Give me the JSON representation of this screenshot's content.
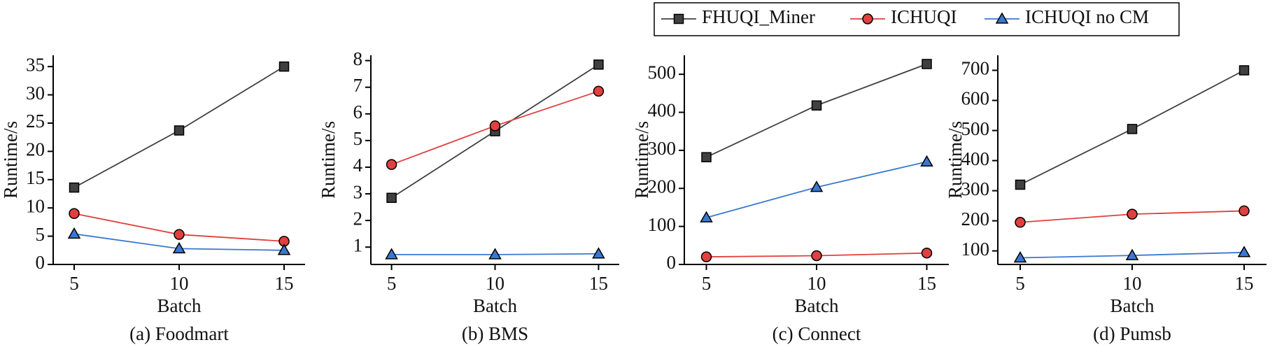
{
  "chart_data": [
    {
      "type": "line",
      "title": "(a) Foodmart",
      "x_label": "Batch",
      "y_label": "Runtime/s",
      "x": [
        5,
        10,
        15
      ],
      "xlim": [
        4,
        16
      ],
      "xticks": [
        5,
        10,
        15
      ],
      "ylim": [
        0,
        37
      ],
      "yticks": [
        0,
        5,
        10,
        15,
        20,
        25,
        30,
        35
      ],
      "series": [
        {
          "name": "FHUQI_Miner",
          "color": "#404040",
          "marker": "square",
          "values": [
            13.6,
            23.7,
            35
          ]
        },
        {
          "name": "ICHUQI",
          "color": "#e0403f",
          "marker": "circle",
          "values": [
            9,
            5.3,
            4.1
          ]
        },
        {
          "name": "ICHUQI no CM",
          "color": "#3a78d0",
          "marker": "triangle",
          "values": [
            5.4,
            2.8,
            2.5
          ]
        }
      ]
    },
    {
      "type": "line",
      "title": "(b) BMS",
      "x_label": "Batch",
      "y_label": "Runtime/s",
      "x": [
        5,
        10,
        15
      ],
      "xlim": [
        4,
        16
      ],
      "xticks": [
        5,
        10,
        15
      ],
      "ylim": [
        0.35,
        8.2
      ],
      "yticks": [
        1,
        2,
        3,
        4,
        5,
        6,
        7,
        8
      ],
      "series": [
        {
          "name": "FHUQI_Miner",
          "color": "#404040",
          "marker": "square",
          "values": [
            2.85,
            5.35,
            7.85
          ]
        },
        {
          "name": "ICHUQI",
          "color": "#e0403f",
          "marker": "circle",
          "values": [
            4.1,
            5.55,
            6.85
          ]
        },
        {
          "name": "ICHUQI no CM",
          "color": "#3a78d0",
          "marker": "triangle",
          "values": [
            0.72,
            0.72,
            0.75
          ]
        }
      ]
    },
    {
      "type": "line",
      "title": "(c) Connect",
      "x_label": "Batch",
      "y_label": "Runtime/s",
      "x": [
        5,
        10,
        15
      ],
      "xlim": [
        4,
        16
      ],
      "xticks": [
        5,
        10,
        15
      ],
      "ylim": [
        0,
        550
      ],
      "yticks": [
        0,
        100,
        200,
        300,
        400,
        500
      ],
      "series": [
        {
          "name": "FHUQI_Miner",
          "color": "#404040",
          "marker": "square",
          "values": [
            282,
            418,
            527
          ]
        },
        {
          "name": "ICHUQI",
          "color": "#e0403f",
          "marker": "circle",
          "values": [
            20,
            23,
            30
          ]
        },
        {
          "name": "ICHUQI no CM",
          "color": "#3a78d0",
          "marker": "triangle",
          "values": [
            123,
            203,
            270
          ]
        }
      ]
    },
    {
      "type": "line",
      "title": "(d) Pumsb",
      "x_label": "Batch",
      "y_label": "Runtime/s",
      "x": [
        5,
        10,
        15
      ],
      "xlim": [
        4,
        16
      ],
      "xticks": [
        5,
        10,
        15
      ],
      "ylim": [
        55,
        750
      ],
      "yticks": [
        100,
        200,
        300,
        400,
        500,
        600,
        700
      ],
      "series": [
        {
          "name": "FHUQI_Miner",
          "color": "#404040",
          "marker": "square",
          "values": [
            320,
            505,
            700
          ]
        },
        {
          "name": "ICHUQI",
          "color": "#e0403f",
          "marker": "circle",
          "values": [
            195,
            222,
            233
          ]
        },
        {
          "name": "ICHUQI no CM",
          "color": "#3a78d0",
          "marker": "triangle",
          "values": [
            77,
            85,
            95
          ]
        }
      ]
    }
  ]
}
